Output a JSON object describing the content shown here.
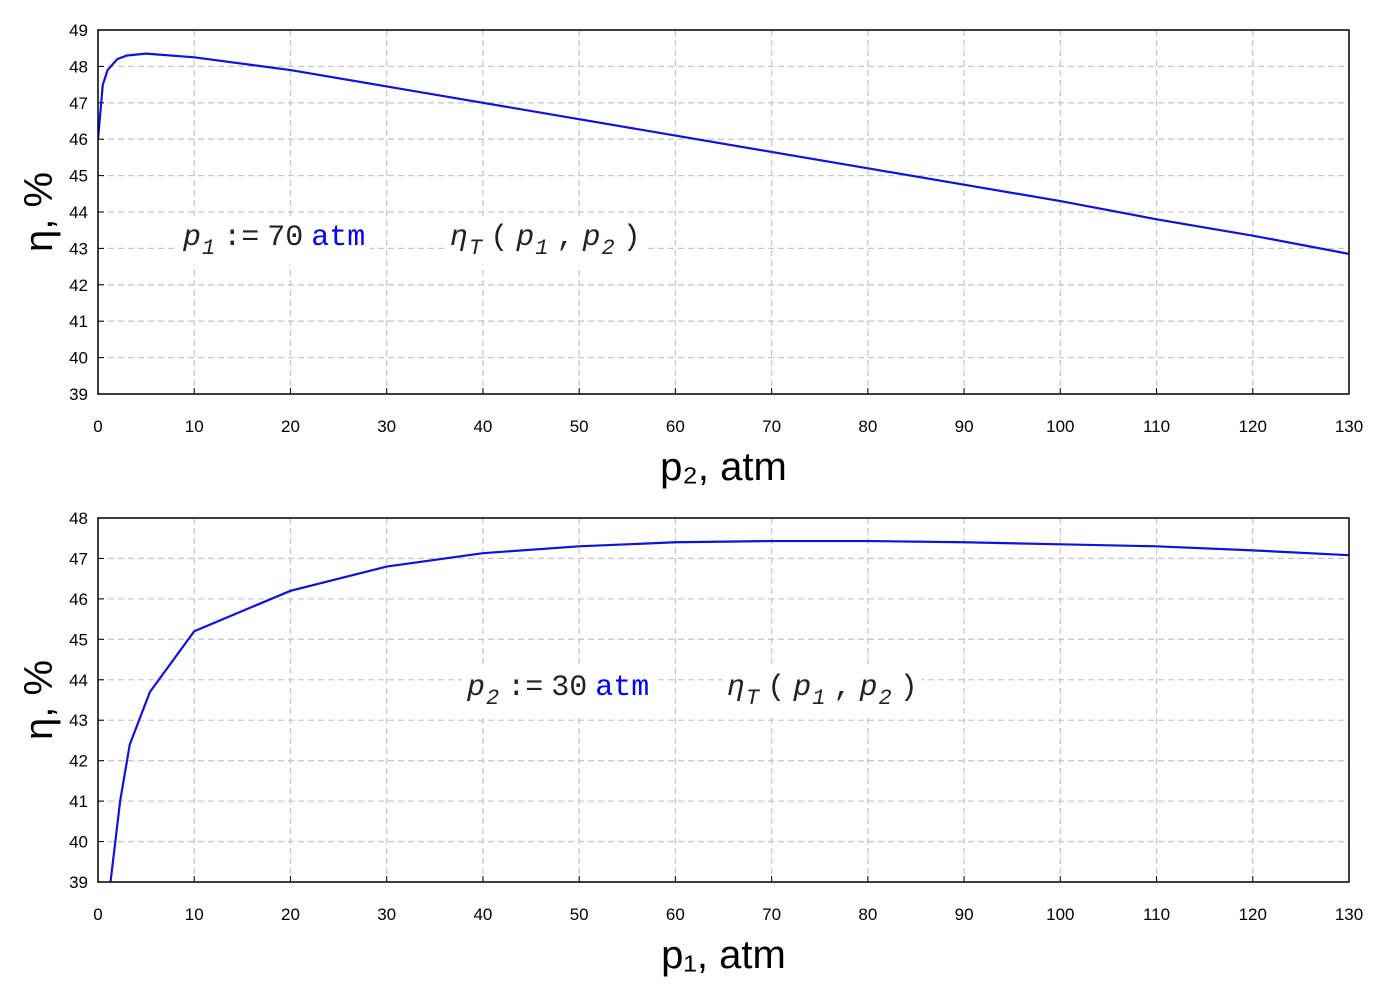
{
  "chart_data": [
    {
      "type": "line",
      "x_label": "p₂, atm",
      "y_label": "η, %",
      "x": [
        0,
        0.5,
        1,
        2,
        3,
        5,
        10,
        20,
        30,
        40,
        50,
        60,
        70,
        80,
        90,
        100,
        110,
        120,
        130
      ],
      "series": [
        {
          "color": "#1010e0",
          "values": [
            46.0,
            47.5,
            47.9,
            48.2,
            48.3,
            48.35,
            48.25,
            47.9,
            47.45,
            47.0,
            46.55,
            46.1,
            45.65,
            45.2,
            44.75,
            44.3,
            43.8,
            43.35,
            42.85
          ]
        }
      ],
      "xlim": [
        0,
        130
      ],
      "xticks": [
        0,
        10,
        20,
        30,
        40,
        50,
        60,
        70,
        80,
        90,
        100,
        110,
        120,
        130
      ],
      "ylim": [
        39,
        49
      ],
      "yticks": [
        39,
        40,
        41,
        42,
        43,
        44,
        45,
        46,
        47,
        48,
        49
      ],
      "grid": true,
      "annotations": [
        {
          "tokens": [
            {
              "text": "p",
              "style": "italic"
            },
            {
              "text": "1",
              "style": "sub"
            },
            {
              "text": ":="
            },
            {
              "text": "70"
            },
            {
              "text": "atm",
              "color": "#0000ff"
            }
          ]
        },
        {
          "tokens": [
            {
              "text": "η",
              "style": "italic"
            },
            {
              "text": "T",
              "style": "sub"
            },
            {
              "text": "("
            },
            {
              "text": "p",
              "style": "italic"
            },
            {
              "text": "1",
              "style": "sub"
            },
            {
              "text": ","
            },
            {
              "text": "p",
              "style": "italic"
            },
            {
              "text": "2",
              "style": "sub"
            },
            {
              "text": ")"
            }
          ]
        }
      ]
    },
    {
      "type": "line",
      "x_label": "p₁, atm",
      "y_label": "η, %",
      "x": [
        1.3,
        2.3,
        3.3,
        5.4,
        10,
        20,
        30,
        40,
        50,
        60,
        70,
        80,
        90,
        100,
        110,
        120,
        130
      ],
      "series": [
        {
          "color": "#1010e0",
          "values": [
            39.0,
            41.0,
            42.4,
            43.7,
            45.2,
            46.2,
            46.8,
            47.13,
            47.3,
            47.4,
            47.43,
            47.43,
            47.4,
            47.35,
            47.3,
            47.2,
            47.08
          ]
        }
      ],
      "xlim": [
        0,
        130
      ],
      "xticks": [
        0,
        10,
        20,
        30,
        40,
        50,
        60,
        70,
        80,
        90,
        100,
        110,
        120,
        130
      ],
      "ylim": [
        39,
        48
      ],
      "yticks": [
        39,
        40,
        41,
        42,
        43,
        44,
        45,
        46,
        47,
        48
      ],
      "grid": true,
      "annotations": [
        {
          "tokens": [
            {
              "text": "p",
              "style": "italic"
            },
            {
              "text": "2",
              "style": "sub"
            },
            {
              "text": ":="
            },
            {
              "text": "30"
            },
            {
              "text": "atm",
              "color": "#0000ff"
            }
          ]
        },
        {
          "tokens": [
            {
              "text": "η",
              "style": "italic"
            },
            {
              "text": "T",
              "style": "sub"
            },
            {
              "text": "("
            },
            {
              "text": "p",
              "style": "italic"
            },
            {
              "text": "1",
              "style": "sub"
            },
            {
              "text": ","
            },
            {
              "text": "p",
              "style": "italic"
            },
            {
              "text": "2",
              "style": "sub"
            },
            {
              "text": ")"
            }
          ]
        }
      ]
    }
  ]
}
